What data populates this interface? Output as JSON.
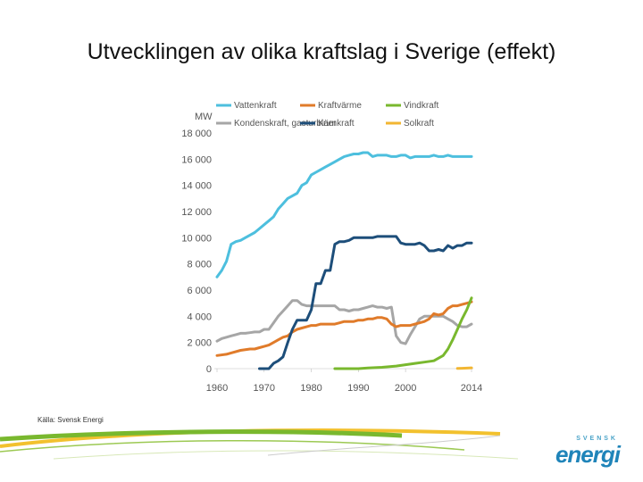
{
  "slide": {
    "title": "Utvecklingen av olika kraftslag i Sverige (effekt)",
    "source": "Källa: Svensk Energi",
    "logo_small": "SVENSK",
    "logo_main": "energi"
  },
  "chart_data": {
    "type": "line",
    "title": "",
    "ylabel": "MW",
    "xlabel": "",
    "xlim": [
      1960,
      2014
    ],
    "ylim": [
      0,
      18000
    ],
    "xticks": [
      1960,
      1970,
      1980,
      1990,
      2000,
      2014
    ],
    "xtick_labels": [
      "1960",
      "1970",
      "1980",
      "1990",
      "2000",
      "2014"
    ],
    "yticks": [
      0,
      2000,
      4000,
      6000,
      8000,
      10000,
      12000,
      14000,
      16000,
      18000
    ],
    "ytick_labels": [
      "0",
      "2 000",
      "4 000",
      "6 000",
      "8 000",
      "10 000",
      "12 000",
      "14 000",
      "16 000",
      "18 000"
    ],
    "legend_position": "top",
    "series": [
      {
        "name": "Vattenkraft",
        "color": "#4dbfde",
        "points": [
          [
            1960,
            7000
          ],
          [
            1961,
            7500
          ],
          [
            1962,
            8200
          ],
          [
            1963,
            9500
          ],
          [
            1964,
            9700
          ],
          [
            1965,
            9800
          ],
          [
            1966,
            10000
          ],
          [
            1967,
            10200
          ],
          [
            1968,
            10400
          ],
          [
            1969,
            10700
          ],
          [
            1970,
            11000
          ],
          [
            1971,
            11300
          ],
          [
            1972,
            11600
          ],
          [
            1973,
            12200
          ],
          [
            1974,
            12600
          ],
          [
            1975,
            13000
          ],
          [
            1976,
            13200
          ],
          [
            1977,
            13400
          ],
          [
            1978,
            14000
          ],
          [
            1979,
            14200
          ],
          [
            1980,
            14800
          ],
          [
            1981,
            15000
          ],
          [
            1982,
            15200
          ],
          [
            1983,
            15400
          ],
          [
            1984,
            15600
          ],
          [
            1985,
            15800
          ],
          [
            1986,
            16000
          ],
          [
            1987,
            16200
          ],
          [
            1988,
            16300
          ],
          [
            1989,
            16400
          ],
          [
            1990,
            16400
          ],
          [
            1991,
            16500
          ],
          [
            1992,
            16500
          ],
          [
            1993,
            16200
          ],
          [
            1994,
            16300
          ],
          [
            1995,
            16300
          ],
          [
            1996,
            16300
          ],
          [
            1997,
            16200
          ],
          [
            1998,
            16200
          ],
          [
            1999,
            16300
          ],
          [
            2000,
            16300
          ],
          [
            2001,
            16100
          ],
          [
            2002,
            16200
          ],
          [
            2003,
            16200
          ],
          [
            2004,
            16200
          ],
          [
            2005,
            16200
          ],
          [
            2006,
            16300
          ],
          [
            2007,
            16200
          ],
          [
            2008,
            16200
          ],
          [
            2009,
            16300
          ],
          [
            2010,
            16200
          ],
          [
            2011,
            16200
          ],
          [
            2012,
            16200
          ],
          [
            2013,
            16200
          ],
          [
            2014,
            16200
          ]
        ]
      },
      {
        "name": "Kondenskraft, gasturbiner",
        "color": "#a6a6a6",
        "points": [
          [
            1960,
            2100
          ],
          [
            1961,
            2300
          ],
          [
            1962,
            2400
          ],
          [
            1963,
            2500
          ],
          [
            1964,
            2600
          ],
          [
            1965,
            2700
          ],
          [
            1966,
            2700
          ],
          [
            1967,
            2750
          ],
          [
            1968,
            2800
          ],
          [
            1969,
            2800
          ],
          [
            1970,
            3000
          ],
          [
            1971,
            3000
          ],
          [
            1972,
            3500
          ],
          [
            1973,
            4000
          ],
          [
            1974,
            4400
          ],
          [
            1975,
            4800
          ],
          [
            1976,
            5200
          ],
          [
            1977,
            5200
          ],
          [
            1978,
            4900
          ],
          [
            1979,
            4800
          ],
          [
            1980,
            4800
          ],
          [
            1981,
            4800
          ],
          [
            1982,
            4800
          ],
          [
            1983,
            4800
          ],
          [
            1984,
            4800
          ],
          [
            1985,
            4800
          ],
          [
            1986,
            4500
          ],
          [
            1987,
            4500
          ],
          [
            1988,
            4400
          ],
          [
            1989,
            4500
          ],
          [
            1990,
            4500
          ],
          [
            1991,
            4600
          ],
          [
            1992,
            4700
          ],
          [
            1993,
            4800
          ],
          [
            1994,
            4700
          ],
          [
            1995,
            4700
          ],
          [
            1996,
            4600
          ],
          [
            1997,
            4700
          ],
          [
            1998,
            2500
          ],
          [
            1999,
            2000
          ],
          [
            2000,
            1900
          ],
          [
            2001,
            2600
          ],
          [
            2002,
            3200
          ],
          [
            2003,
            3800
          ],
          [
            2004,
            4000
          ],
          [
            2005,
            4000
          ],
          [
            2006,
            4000
          ],
          [
            2007,
            4000
          ],
          [
            2008,
            4000
          ],
          [
            2009,
            3800
          ],
          [
            2010,
            3600
          ],
          [
            2011,
            3300
          ],
          [
            2012,
            3200
          ],
          [
            2013,
            3200
          ],
          [
            2014,
            3400
          ]
        ]
      },
      {
        "name": "Kraftvärme",
        "color": "#e07b2a",
        "points": [
          [
            1960,
            1000
          ],
          [
            1962,
            1100
          ],
          [
            1963,
            1200
          ],
          [
            1965,
            1400
          ],
          [
            1967,
            1500
          ],
          [
            1968,
            1500
          ],
          [
            1969,
            1600
          ],
          [
            1970,
            1700
          ],
          [
            1971,
            1800
          ],
          [
            1972,
            2000
          ],
          [
            1973,
            2200
          ],
          [
            1974,
            2400
          ],
          [
            1975,
            2500
          ],
          [
            1976,
            2800
          ],
          [
            1977,
            3000
          ],
          [
            1978,
            3100
          ],
          [
            1979,
            3200
          ],
          [
            1980,
            3300
          ],
          [
            1981,
            3300
          ],
          [
            1982,
            3400
          ],
          [
            1983,
            3400
          ],
          [
            1984,
            3400
          ],
          [
            1985,
            3400
          ],
          [
            1986,
            3500
          ],
          [
            1987,
            3600
          ],
          [
            1988,
            3600
          ],
          [
            1989,
            3600
          ],
          [
            1990,
            3700
          ],
          [
            1991,
            3700
          ],
          [
            1992,
            3800
          ],
          [
            1993,
            3800
          ],
          [
            1994,
            3900
          ],
          [
            1995,
            3900
          ],
          [
            1996,
            3800
          ],
          [
            1997,
            3400
          ],
          [
            1998,
            3200
          ],
          [
            1999,
            3300
          ],
          [
            2000,
            3300
          ],
          [
            2001,
            3300
          ],
          [
            2002,
            3400
          ],
          [
            2003,
            3500
          ],
          [
            2004,
            3600
          ],
          [
            2005,
            3800
          ],
          [
            2006,
            4200
          ],
          [
            2007,
            4100
          ],
          [
            2008,
            4200
          ],
          [
            2009,
            4600
          ],
          [
            2010,
            4800
          ],
          [
            2011,
            4800
          ],
          [
            2012,
            4900
          ],
          [
            2013,
            5000
          ],
          [
            2014,
            5100
          ]
        ]
      },
      {
        "name": "Kärnkraft",
        "color": "#1d4e7a",
        "points": [
          [
            1969,
            0
          ],
          [
            1971,
            0
          ],
          [
            1972,
            400
          ],
          [
            1973,
            600
          ],
          [
            1974,
            900
          ],
          [
            1975,
            2000
          ],
          [
            1976,
            3000
          ],
          [
            1977,
            3700
          ],
          [
            1978,
            3700
          ],
          [
            1979,
            3700
          ],
          [
            1980,
            4500
          ],
          [
            1981,
            6500
          ],
          [
            1982,
            6500
          ],
          [
            1983,
            7500
          ],
          [
            1984,
            7500
          ],
          [
            1985,
            9500
          ],
          [
            1986,
            9700
          ],
          [
            1987,
            9700
          ],
          [
            1988,
            9800
          ],
          [
            1989,
            10000
          ],
          [
            1990,
            10000
          ],
          [
            1991,
            10000
          ],
          [
            1992,
            10000
          ],
          [
            1993,
            10000
          ],
          [
            1994,
            10100
          ],
          [
            1995,
            10100
          ],
          [
            1996,
            10100
          ],
          [
            1997,
            10100
          ],
          [
            1998,
            10100
          ],
          [
            1999,
            9600
          ],
          [
            2000,
            9500
          ],
          [
            2001,
            9500
          ],
          [
            2002,
            9500
          ],
          [
            2003,
            9600
          ],
          [
            2004,
            9400
          ],
          [
            2005,
            9000
          ],
          [
            2006,
            9000
          ],
          [
            2007,
            9100
          ],
          [
            2008,
            9000
          ],
          [
            2009,
            9400
          ],
          [
            2010,
            9200
          ],
          [
            2011,
            9400
          ],
          [
            2012,
            9400
          ],
          [
            2013,
            9600
          ],
          [
            2014,
            9600
          ]
        ]
      },
      {
        "name": "Vindkraft",
        "color": "#79b82e",
        "points": [
          [
            1985,
            0
          ],
          [
            1990,
            0
          ],
          [
            1992,
            50
          ],
          [
            1995,
            100
          ],
          [
            1998,
            200
          ],
          [
            2000,
            300
          ],
          [
            2002,
            400
          ],
          [
            2004,
            500
          ],
          [
            2006,
            600
          ],
          [
            2008,
            1000
          ],
          [
            2009,
            1500
          ],
          [
            2010,
            2200
          ],
          [
            2011,
            3000
          ],
          [
            2012,
            3800
          ],
          [
            2013,
            4500
          ],
          [
            2014,
            5400
          ]
        ]
      },
      {
        "name": "Solkraft",
        "color": "#f2b632",
        "points": [
          [
            2011,
            20
          ],
          [
            2012,
            30
          ],
          [
            2013,
            40
          ],
          [
            2014,
            60
          ]
        ]
      }
    ]
  }
}
